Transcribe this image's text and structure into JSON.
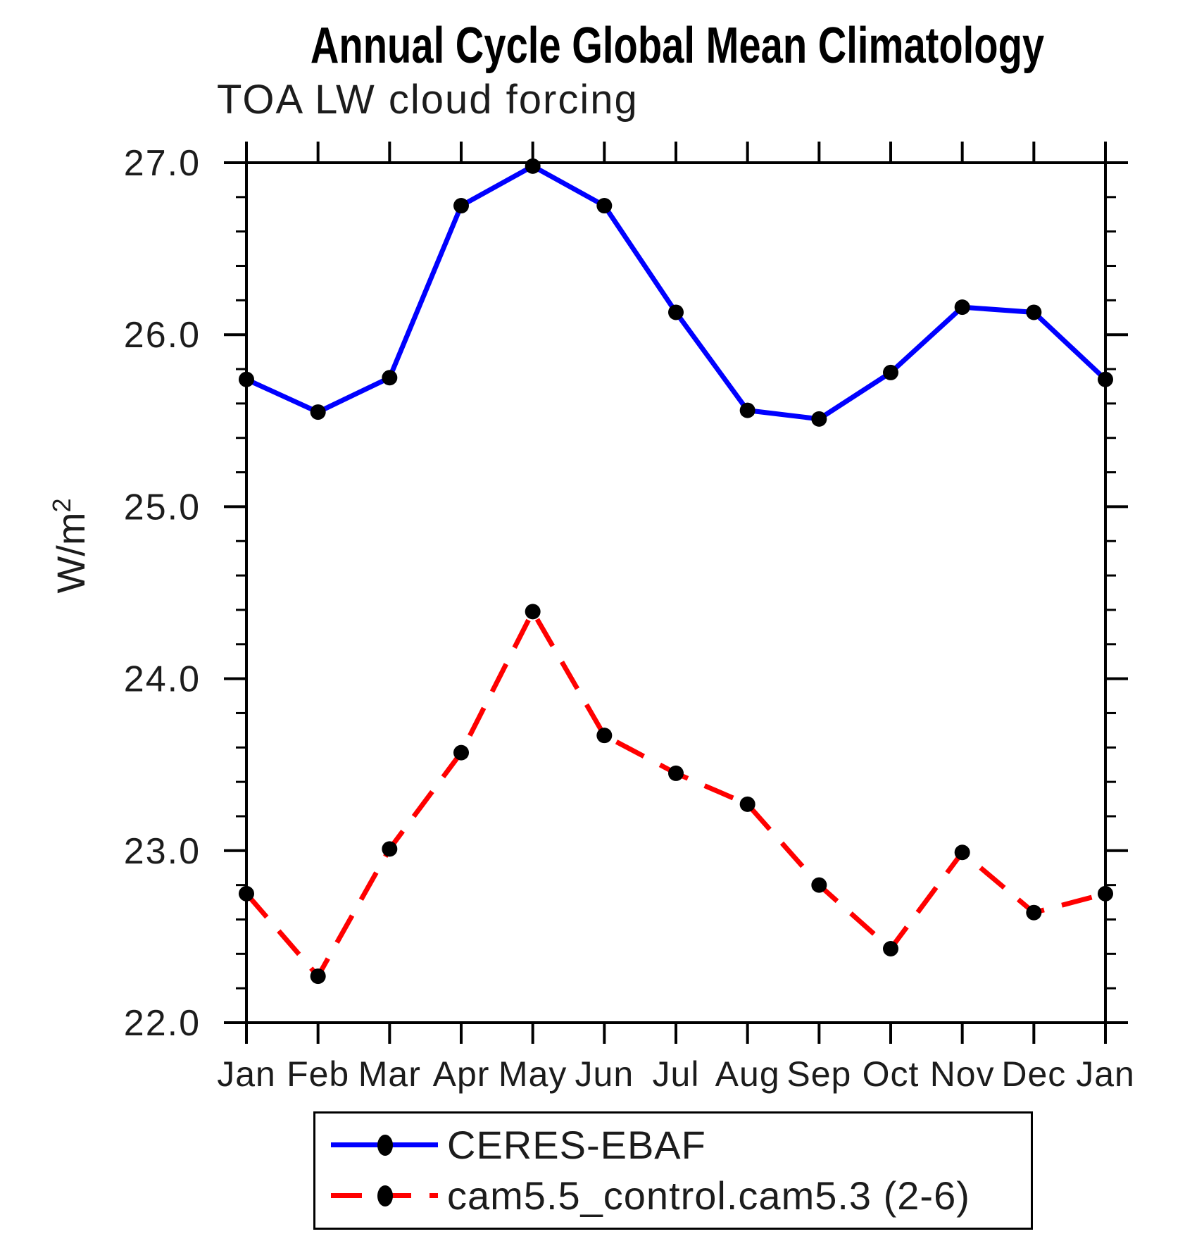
{
  "title": "Annual Cycle Global Mean Climatology",
  "subtitle": "TOA LW cloud forcing",
  "legend": {
    "position": "bottom",
    "entries": [
      {
        "label": "CERES-EBAF",
        "color": "#0000ff",
        "style": "solid",
        "marker": "filled-circle",
        "marker_color": "#000000"
      },
      {
        "label": "cam5.5_control.cam5.3 (2-6)",
        "color": "#ff0000",
        "style": "dashed",
        "marker": "filled-circle",
        "marker_color": "#000000"
      }
    ]
  },
  "chart_data": {
    "type": "line",
    "title": "Annual Cycle Global Mean Climatology",
    "subtitle": "TOA LW cloud forcing",
    "categories": [
      "Jan",
      "Feb",
      "Mar",
      "Apr",
      "May",
      "Jun",
      "Jul",
      "Aug",
      "Sep",
      "Oct",
      "Nov",
      "Dec",
      "Jan"
    ],
    "series": [
      {
        "name": "CERES-EBAF",
        "color": "#0000ff",
        "line_style": "solid",
        "marker": "filled-circle",
        "marker_color": "#000000",
        "values": [
          25.74,
          25.55,
          25.75,
          26.75,
          26.98,
          26.75,
          26.13,
          25.56,
          25.51,
          25.78,
          26.16,
          26.13,
          25.74
        ]
      },
      {
        "name": "cam5.5_control.cam5.3 (2-6)",
        "color": "#ff0000",
        "line_style": "dashed",
        "marker": "filled-circle",
        "marker_color": "#000000",
        "values": [
          22.75,
          22.27,
          23.01,
          23.57,
          24.39,
          23.67,
          23.45,
          23.27,
          22.8,
          22.43,
          22.99,
          22.64,
          22.75
        ]
      }
    ],
    "xlabel": "",
    "ylabel": "W/m",
    "ylabel_exponent": "2",
    "ylim": [
      22.0,
      27.0
    ],
    "yticks": [
      22.0,
      23.0,
      24.0,
      25.0,
      26.0,
      27.0
    ],
    "ytick_labels": [
      "22.0",
      "23.0",
      "24.0",
      "25.0",
      "26.0",
      "27.0"
    ],
    "minor_tick_interval": 0.2,
    "grid": false,
    "legend_position": "bottom"
  }
}
